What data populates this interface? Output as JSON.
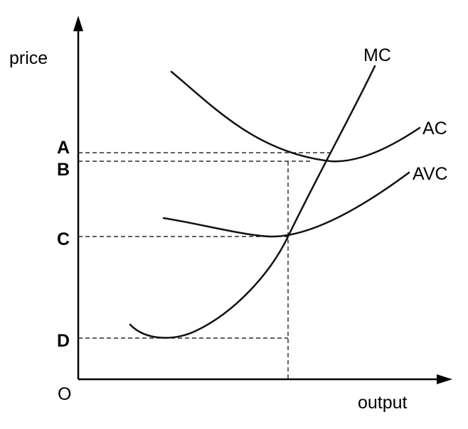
{
  "axes": {
    "y_label": "price",
    "x_label": "output",
    "origin_label": "O"
  },
  "price_levels": {
    "a": "A",
    "b": "B",
    "c": "C",
    "d": "D"
  },
  "curves": {
    "mc": "MC",
    "ac": "AC",
    "avc": "AVC"
  }
}
